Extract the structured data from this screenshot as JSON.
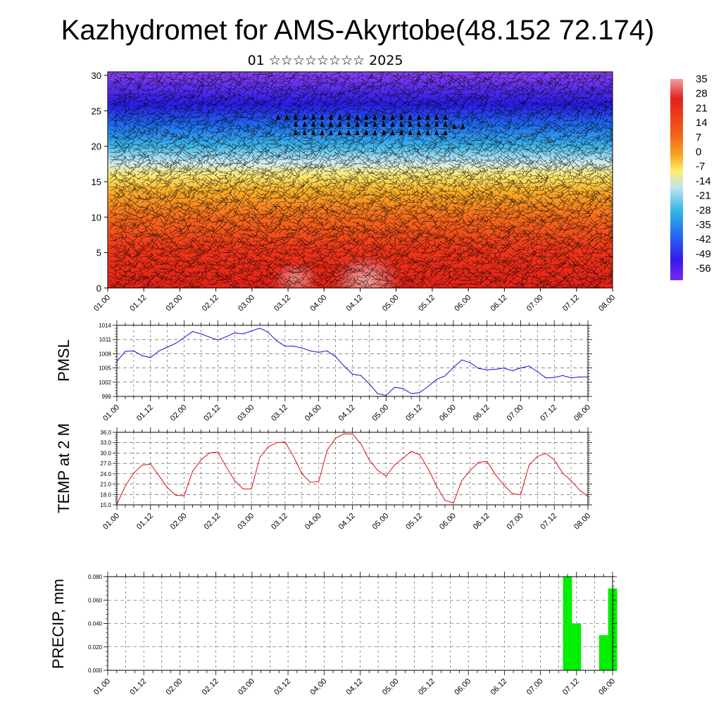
{
  "header": {
    "title": "Kazhydromet for AMS-Akyrtobe(48.152 72.174)",
    "subtitle": "01 ☆☆☆☆☆☆☆☆ 2025"
  },
  "colorbar": {
    "labels": [
      "35",
      "28",
      "21",
      "14",
      "7",
      "0",
      "-7",
      "-14",
      "-21",
      "-28",
      "-35",
      "-42",
      "-49",
      "-56"
    ],
    "colors": [
      "#f2a0a0",
      "#e0201c",
      "#f26418",
      "#f5a623",
      "#ffee6e",
      "#bfe4ef",
      "#31b4e6",
      "#2468f2",
      "#3818e8",
      "#7a2af0"
    ]
  },
  "chart_data": [
    {
      "type": "heatmap",
      "name": "cross-section",
      "x_ticks": [
        "01.00",
        "01.12",
        "02.00",
        "02.12",
        "03.00",
        "03.12",
        "04.00",
        "04.12",
        "05.00",
        "05.12",
        "06.00",
        "06.12",
        "07.00",
        "07.12",
        "08.00"
      ],
      "y_ticks": [
        "0",
        "5",
        "10",
        "15",
        "20",
        "25",
        "30"
      ],
      "ylim": [
        0,
        30.5
      ],
      "overlay": "wind barbs"
    },
    {
      "type": "line",
      "name": "PMSL",
      "ylabel": "PMSL",
      "color": "#1010e0",
      "ylim": [
        999,
        1014
      ],
      "y_ticks": [
        "1014",
        "1011",
        "1008",
        "1005",
        "1002",
        "999"
      ],
      "x_ticks": [
        "01.00",
        "01.12",
        "02.00",
        "02.12",
        "03.00",
        "03.12",
        "04.00",
        "04.12",
        "05.00",
        "05.12",
        "06.00",
        "06.12",
        "07.00",
        "07.12",
        "08.00"
      ],
      "x": [
        0,
        3,
        6,
        9,
        12,
        15,
        18,
        21,
        24,
        27,
        30,
        33,
        36,
        39,
        42,
        45,
        48,
        51,
        54,
        57,
        60,
        63,
        66,
        69,
        72,
        75,
        78,
        81,
        84,
        87,
        90,
        93,
        96,
        99,
        102,
        105,
        108,
        111,
        114,
        117,
        120,
        123,
        126,
        129,
        132,
        135,
        138,
        141,
        144,
        147,
        150,
        153,
        156,
        159,
        162,
        165,
        168
      ],
      "values": [
        1006.4,
        1008.5,
        1008.6,
        1007.6,
        1007.2,
        1008.6,
        1009.4,
        1010.2,
        1011.4,
        1012.7,
        1012.2,
        1011.5,
        1010.9,
        1011.6,
        1012.4,
        1012.2,
        1012.8,
        1013.4,
        1012.5,
        1010.7,
        1009.6,
        1009.6,
        1009.2,
        1008.6,
        1008.3,
        1008.6,
        1007.4,
        1005.4,
        1003.7,
        1003.4,
        1001.7,
        999.6,
        999.2,
        1000.9,
        1000.7,
        999.6,
        999.8,
        1001.1,
        1002.6,
        1003.3,
        1005.1,
        1006.7,
        1006.1,
        1004.9,
        1004.6,
        1004.7,
        1005.0,
        1004.4,
        1005.0,
        1005.4,
        1004.2,
        1002.9,
        1003.0,
        1003.4,
        1002.9,
        1003.1,
        1003.1
      ]
    },
    {
      "type": "line",
      "name": "TEMP at 2 M",
      "ylabel": "TEMP at 2 M",
      "color": "#e01010",
      "ylim": [
        15.0,
        36.0
      ],
      "y_ticks": [
        "36.0",
        "33.0",
        "30.0",
        "27.0",
        "24.0",
        "21.0",
        "18.0",
        "15.0"
      ],
      "x_ticks": [
        "01.00",
        "01.12",
        "02.00",
        "02.12",
        "03.00",
        "03.12",
        "04.00",
        "04.12",
        "05.00",
        "05.12",
        "06.00",
        "06.12",
        "07.00",
        "07.12",
        "08.00"
      ],
      "x": [
        0,
        3,
        6,
        9,
        12,
        15,
        18,
        21,
        24,
        27,
        30,
        33,
        36,
        39,
        42,
        45,
        48,
        51,
        54,
        57,
        60,
        63,
        66,
        69,
        72,
        75,
        78,
        81,
        84,
        87,
        90,
        93,
        96,
        99,
        102,
        105,
        108,
        111,
        114,
        117,
        120,
        123,
        126,
        129,
        132,
        135,
        138,
        141,
        144,
        147,
        150,
        153,
        156,
        159,
        162,
        165,
        168
      ],
      "values": [
        15.2,
        20.4,
        24.2,
        26.5,
        26.8,
        23.5,
        20.0,
        17.8,
        17.6,
        24.7,
        28.0,
        30.0,
        30.3,
        26.0,
        22.0,
        19.6,
        19.6,
        28.8,
        31.8,
        33.0,
        33.2,
        29.0,
        24.0,
        21.5,
        21.8,
        30.8,
        34.3,
        35.6,
        35.5,
        32.7,
        28.0,
        25.0,
        23.3,
        26.5,
        28.5,
        30.5,
        29.5,
        25.5,
        20.5,
        16.3,
        15.5,
        22.0,
        25.0,
        27.3,
        27.6,
        23.8,
        20.7,
        18.3,
        17.9,
        26.5,
        29.0,
        29.9,
        28.0,
        24.2,
        22.0,
        19.3,
        17.4
      ]
    },
    {
      "type": "bar",
      "name": "PRECIP",
      "ylabel": "PRECIP, mm",
      "color": "#00ee00",
      "ylim": [
        0.0,
        0.08
      ],
      "y_ticks": [
        "0.080",
        "0.060",
        "0.040",
        "0.020",
        "0.000"
      ],
      "x_ticks": [
        "01.00",
        "01.12",
        "02.00",
        "02.12",
        "03.00",
        "03.12",
        "04.00",
        "04.12",
        "05.00",
        "05.12",
        "06.00",
        "06.12",
        "07.00",
        "07.12",
        "08.00"
      ],
      "x": [
        153,
        156,
        159,
        162,
        165,
        168
      ],
      "values": [
        0.08,
        0.04,
        0.0,
        0.0,
        0.03,
        0.07
      ]
    }
  ]
}
